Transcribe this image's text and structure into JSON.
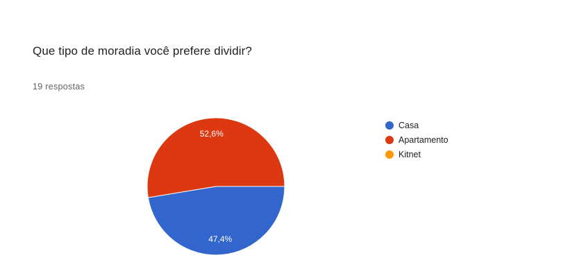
{
  "question": {
    "title": "Que tipo de moradia você prefere dividir?",
    "responses": "19 respostas"
  },
  "chart_data": {
    "type": "pie",
    "categories": [
      "Casa",
      "Apartamento",
      "Kitnet"
    ],
    "values": [
      47.4,
      52.6,
      0
    ],
    "labels": [
      "47,4%",
      "52,6%",
      ""
    ],
    "colors": [
      "#3366cc",
      "#dc3912",
      "#ff9900"
    ],
    "legend_position": "right"
  }
}
